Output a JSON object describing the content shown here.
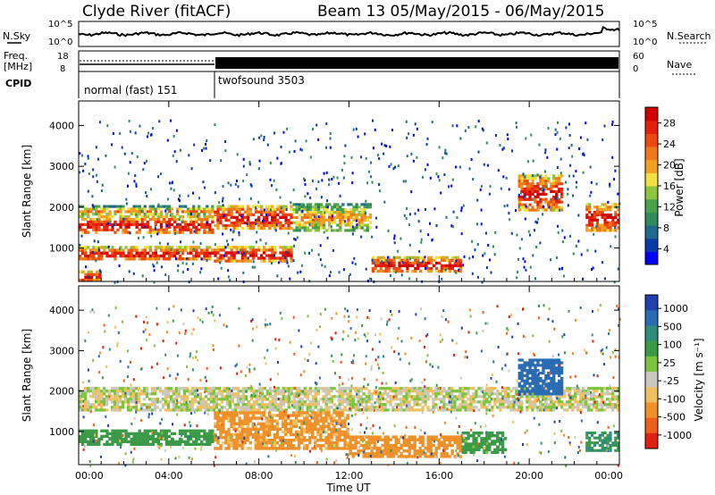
{
  "header": {
    "station": "Clyde River (fitACF)",
    "beam_info": "Beam 13 05/May/2015 - 06/May/2015"
  },
  "noise_panel": {
    "left_label": "N.Sky",
    "right_label": "N.Search",
    "left_ticks": [
      "10^5",
      "10^0"
    ],
    "right_ticks": [
      "10^5",
      "10^0"
    ]
  },
  "freq_panel": {
    "left_label_1": "Freq.",
    "left_label_2": "[MHz]",
    "left_ticks": [
      "18",
      "8"
    ],
    "right_label": "Nave",
    "right_ticks": [
      "60",
      "0"
    ]
  },
  "cpid_panel": {
    "label": "CPID",
    "modes": [
      {
        "name": "normal (fast) 151",
        "start_hour": 0,
        "end_hour": 6
      },
      {
        "name": "twofsound 3503",
        "start_hour": 6,
        "end_hour": 24
      }
    ]
  },
  "axes": {
    "ylabel": "Slant Range [km]",
    "yticks": [
      "1000",
      "2000",
      "3000",
      "4000"
    ],
    "xticks": [
      "00:00",
      "04:00",
      "08:00",
      "12:00",
      "16:00",
      "20:00",
      "00:00"
    ],
    "xlabel": "Time UT"
  },
  "power_colorbar": {
    "label": "Power [dB]",
    "ticks": [
      "4",
      "8",
      "12",
      "16",
      "20",
      "24",
      "28"
    ],
    "colors": [
      "#0000ff",
      "#0a3aa8",
      "#1e6a8c",
      "#2e8c5a",
      "#4aa24a",
      "#8cc43c",
      "#f0e040",
      "#f4a020",
      "#f07818",
      "#ee4a10",
      "#e61e0a",
      "#d20000"
    ]
  },
  "velocity_colorbar": {
    "label": "Velocity [m s⁻¹]",
    "ticks": [
      "1000",
      "500",
      "100",
      "25",
      "-25",
      "-100",
      "-500",
      "-1000"
    ],
    "colors": [
      "#2040b0",
      "#2a6cb4",
      "#2e8c7a",
      "#3a9a46",
      "#7cc43c",
      "#c8c8c0",
      "#f0c060",
      "#f09028",
      "#ee6018",
      "#e02010"
    ]
  },
  "chart_data": {
    "type": "heatmap",
    "x_range_hours": [
      0,
      24
    ],
    "y_range_km": [
      180,
      4600
    ],
    "power_bands": [
      {
        "t0": 0,
        "t1": 6,
        "r0": 1350,
        "r1": 1800,
        "level": "high"
      },
      {
        "t0": 0,
        "t1": 6,
        "r0": 1800,
        "r1": 2050,
        "level": "mid"
      },
      {
        "t0": 0,
        "t1": 6,
        "r0": 700,
        "r1": 1050,
        "level": "high"
      },
      {
        "t0": 0,
        "t1": 1,
        "r0": 180,
        "r1": 450,
        "level": "high"
      },
      {
        "t0": 6,
        "t1": 9.5,
        "r0": 1450,
        "r1": 2050,
        "level": "high"
      },
      {
        "t0": 6,
        "t1": 9.5,
        "r0": 650,
        "r1": 1050,
        "level": "high"
      },
      {
        "t0": 9.5,
        "t1": 13,
        "r0": 1400,
        "r1": 2100,
        "level": "mid"
      },
      {
        "t0": 13,
        "t1": 17,
        "r0": 400,
        "r1": 800,
        "level": "high"
      },
      {
        "t0": 19.5,
        "t1": 21.5,
        "r0": 1900,
        "r1": 2800,
        "level": "high"
      },
      {
        "t0": 22.5,
        "t1": 24,
        "r0": 1400,
        "r1": 2100,
        "level": "high"
      }
    ],
    "velocity_bands": [
      {
        "t0": 0,
        "t1": 24,
        "r0": 1500,
        "r1": 2100,
        "value": 0
      },
      {
        "t0": 0,
        "t1": 6,
        "r0": 650,
        "r1": 1050,
        "value": 200
      },
      {
        "t0": 6,
        "t1": 12,
        "r0": 550,
        "r1": 1500,
        "value": -150
      },
      {
        "t0": 12,
        "t1": 17,
        "r0": 350,
        "r1": 900,
        "value": -200
      },
      {
        "t0": 17,
        "t1": 19,
        "r0": 450,
        "r1": 1000,
        "value": 150
      },
      {
        "t0": 19.5,
        "t1": 21.5,
        "r0": 1900,
        "r1": 2800,
        "value": 700
      },
      {
        "t0": 22.5,
        "t1": 24,
        "r0": 500,
        "r1": 1000,
        "value": 300
      }
    ]
  }
}
